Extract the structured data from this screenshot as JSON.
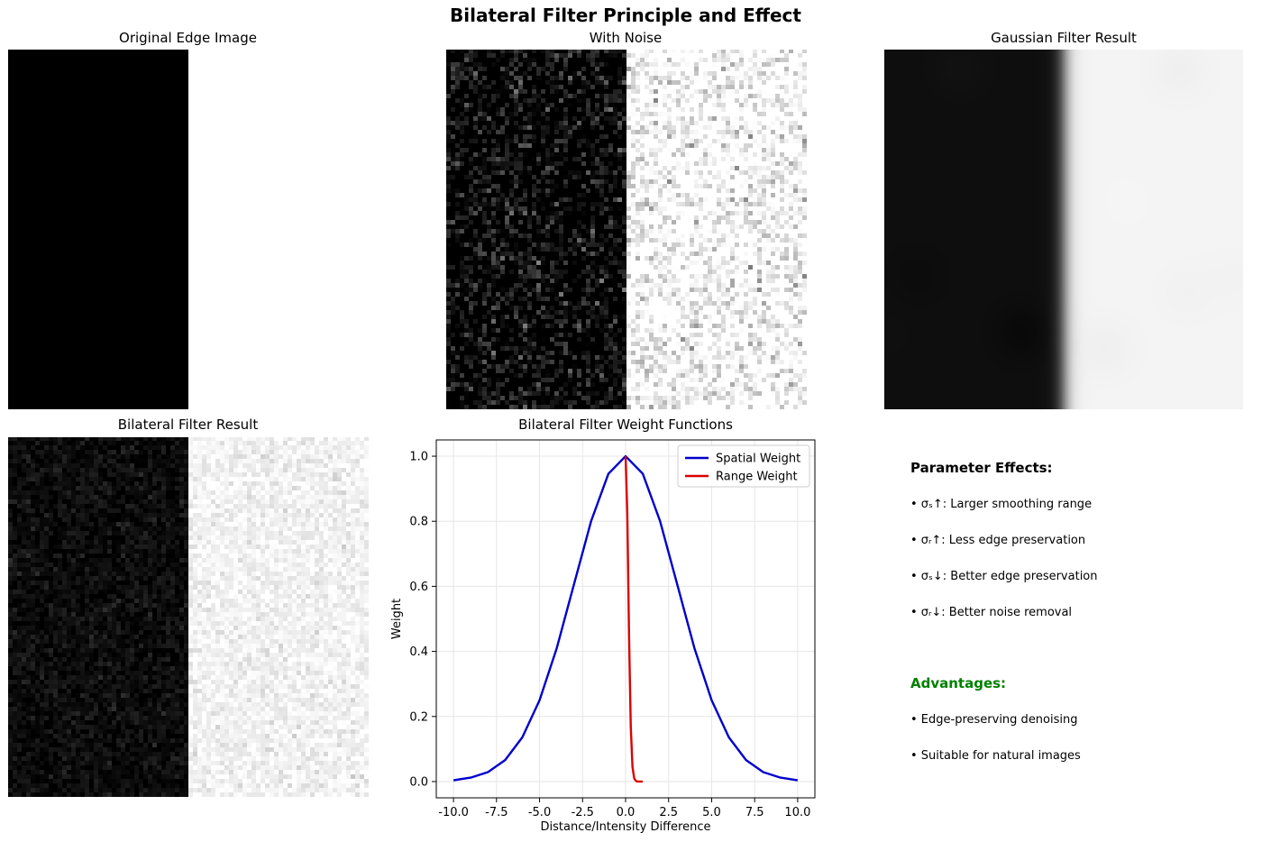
{
  "figure": {
    "title": "Bilateral Filter Principle and Effect"
  },
  "panels": {
    "original": {
      "title": "Original Edge Image"
    },
    "noise": {
      "title": "With Noise"
    },
    "gaussian": {
      "title": "Gaussian Filter Result"
    },
    "bilateral": {
      "title": "Bilateral Filter Result"
    },
    "weights": {
      "title": "Bilateral Filter Weight Functions"
    }
  },
  "notes": {
    "param_heading": "Parameter Effects:",
    "param_items": [
      "• σₛ↑: Larger smoothing range",
      "• σᵣ↑: Less edge preservation",
      "• σₛ↓: Better edge preservation",
      "• σᵣ↓: Better noise removal"
    ],
    "adv_heading": "Advantages:",
    "adv_items": [
      "• Edge-preserving denoising",
      "• Suitable for natural images"
    ],
    "adv_color": "#008000"
  },
  "chart_data": {
    "type": "line",
    "title": "Bilateral Filter Weight Functions",
    "xlabel": "Distance/Intensity Difference",
    "ylabel": "Weight",
    "xlim": [
      -11,
      11
    ],
    "ylim": [
      -0.05,
      1.05
    ],
    "xticks": [
      -10.0,
      -7.5,
      -5.0,
      -2.5,
      0.0,
      2.5,
      5.0,
      7.5,
      10.0
    ],
    "xtick_labels": [
      "-10.0",
      "-7.5",
      "-5.0",
      "-2.5",
      "0.0",
      "2.5",
      "5.0",
      "7.5",
      "10.0"
    ],
    "yticks": [
      0.0,
      0.2,
      0.4,
      0.6,
      0.8,
      1.0
    ],
    "ytick_labels": [
      "0.0",
      "0.2",
      "0.4",
      "0.6",
      "0.8",
      "1.0"
    ],
    "grid": true,
    "legend_position": "top-right",
    "series": [
      {
        "name": "Spatial Weight",
        "color": "#0000cc",
        "x": [
          -10,
          -9,
          -8,
          -7,
          -6,
          -5,
          -4,
          -3,
          -2,
          -1,
          0,
          1,
          2,
          3,
          4,
          5,
          6,
          7,
          8,
          9,
          10
        ],
        "y": [
          0.004,
          0.012,
          0.029,
          0.066,
          0.136,
          0.25,
          0.41,
          0.606,
          0.801,
          0.946,
          1.0,
          0.946,
          0.801,
          0.606,
          0.41,
          0.25,
          0.136,
          0.066,
          0.029,
          0.012,
          0.004
        ]
      },
      {
        "name": "Range Weight",
        "color": "#dd0000",
        "x": [
          0.0,
          0.1,
          0.2,
          0.3,
          0.4,
          0.5,
          0.6,
          0.7,
          0.8,
          0.9,
          1.0
        ],
        "y": [
          1.0,
          0.82,
          0.45,
          0.17,
          0.045,
          0.01,
          0.002,
          0.0,
          0.0,
          0.0,
          0.0
        ]
      }
    ]
  }
}
